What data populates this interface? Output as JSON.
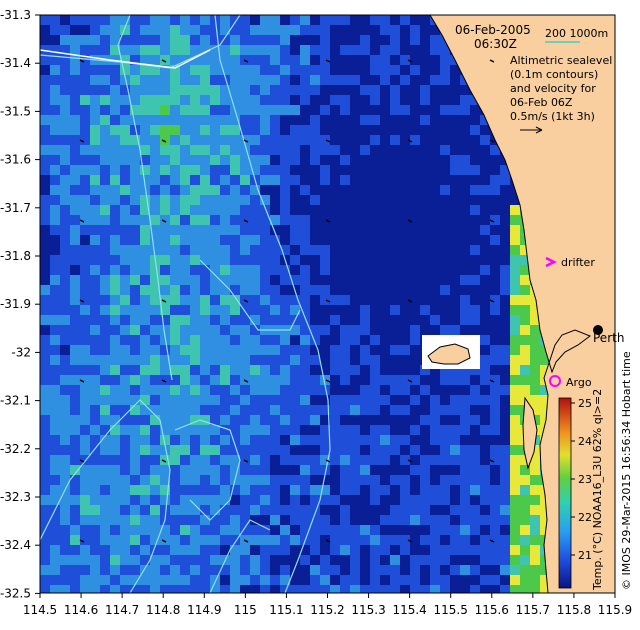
{
  "header": {
    "date": "06-Feb-2005",
    "time": "06:30Z",
    "isobath_scale": "200  1000m"
  },
  "legend_text": {
    "line1": "Altimetric sealevel",
    "line2": "(0.1m contours)",
    "line3": "and velocity for",
    "line4": "06-Feb 06Z",
    "line5": "0.5m/s (1kt 3h)"
  },
  "places": {
    "drifter": "drifter",
    "perth": "Perth",
    "argo": "Argo"
  },
  "colorbar": {
    "title": "Temp. (°C) NOAA16_L3U 62% ql>=2",
    "ticks": [
      "25",
      "24",
      "23",
      "22",
      "21"
    ]
  },
  "credit": "© IMOS 29-Mar-2015 16:56:34 Hobart time",
  "axes": {
    "x_ticks": [
      "114.5",
      "114.6",
      "114.7",
      "114.8",
      "114.9",
      "115",
      "115.1",
      "115.2",
      "115.3",
      "115.4",
      "115.5",
      "115.6",
      "115.7",
      "115.8",
      "115.9"
    ],
    "y_ticks": [
      "-31.3",
      "-31.4",
      "-31.5",
      "-31.6",
      "-31.7",
      "-31.8",
      "-31.9",
      "-32",
      "-32.1",
      "-32.2",
      "-32.3",
      "-32.4",
      "-32.5"
    ]
  },
  "colors": {
    "ocean_deep": "#0a1e96",
    "ocean_mid": "#1f4fd8",
    "ocean_light": "#2f8fe0",
    "ocean_cyan": "#3fc4b0",
    "warm_green": "#4cc84a",
    "yellow": "#e8e83a",
    "land": "#f9cfa0",
    "contour": "#8fe0f0",
    "drifter": "#ff00ff",
    "argo": "#ff00ff"
  }
}
